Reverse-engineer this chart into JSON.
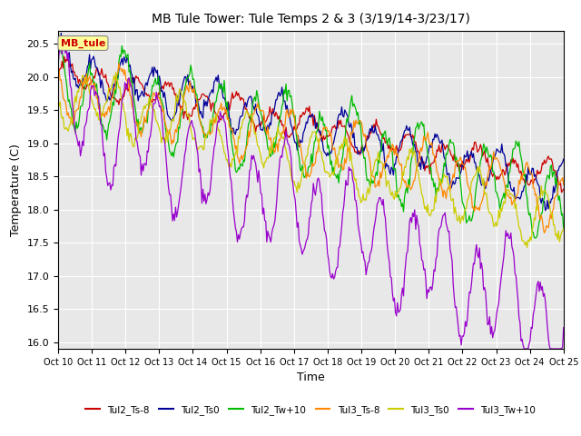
{
  "title": "MB Tule Tower: Tule Temps 2 & 3 (3/19/14-3/23/17)",
  "xlabel": "Time",
  "ylabel": "Temperature (C)",
  "ylim": [
    15.9,
    20.7
  ],
  "yticks": [
    16.0,
    16.5,
    17.0,
    17.5,
    18.0,
    18.5,
    19.0,
    19.5,
    20.0,
    20.5
  ],
  "xtick_labels": [
    "Oct 10",
    "Oct 11",
    "Oct 12",
    "Oct 13",
    "Oct 14",
    "Oct 15",
    "Oct 16",
    "Oct 17",
    "Oct 18",
    "Oct 19",
    "Oct 20",
    "Oct 21",
    "Oct 22",
    "Oct 23",
    "Oct 24",
    "Oct 25"
  ],
  "plot_bg_color": "#e8e8e8",
  "legend_labels": [
    "Tul2_Ts-8",
    "Tul2_Ts0",
    "Tul2_Tw+10",
    "Tul3_Ts-8",
    "Tul3_Ts0",
    "Tul3_Tw+10"
  ],
  "legend_colors": [
    "#cc0000",
    "#000099",
    "#00bb00",
    "#ff8800",
    "#cccc00",
    "#9900cc"
  ],
  "annotation_text": "MB_tule",
  "annotation_color": "#cc0000",
  "annotation_box_color": "#ffff99",
  "num_points": 500
}
